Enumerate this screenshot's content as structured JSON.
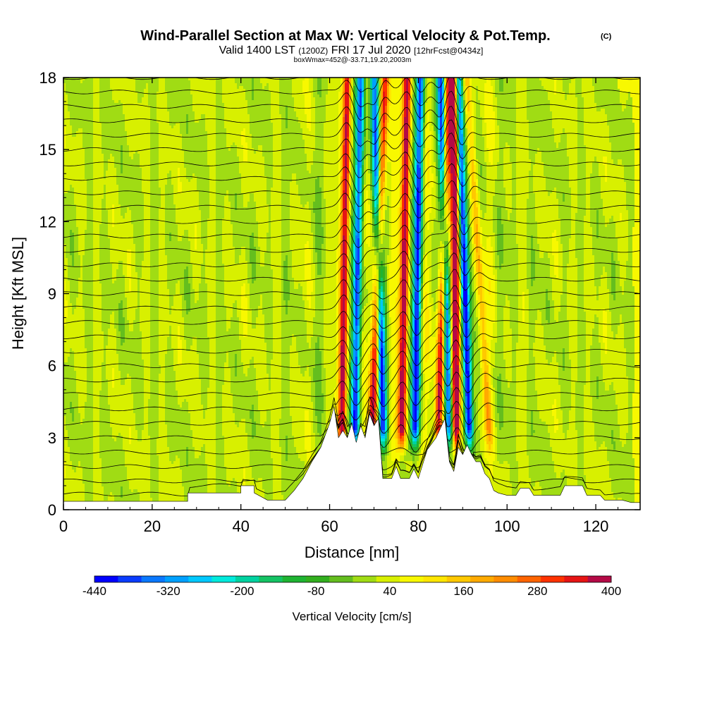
{
  "header": {
    "title": "Wind-Parallel Section at Max W: Vertical Velocity & Pot.Temp.",
    "title_mark": "(C)",
    "line2_a": "Valid 1400 LST",
    "line2_b": "(1200Z)",
    "line2_c": "FRI 17 Jul 2020",
    "line2_d": "[12hrFcst@0434z]",
    "line3": "boxWmax=452@-33.71,19.20,2003m"
  },
  "chart_data": {
    "type": "heatmap",
    "xlabel": "Distance [nm]",
    "ylabel": "Height [Kft MSL]",
    "xlim": [
      0,
      130
    ],
    "ylim": [
      0,
      18
    ],
    "xticks": [
      0,
      20,
      40,
      60,
      80,
      100,
      120
    ],
    "yticks": [
      0,
      3,
      6,
      9,
      12,
      15,
      18
    ],
    "colorbar": {
      "label": "Vertical Velocity [cm/s]",
      "min": -440,
      "max": 400,
      "step": 40,
      "tick_labels": [
        "-440",
        "-320",
        "-200",
        "-80",
        "40",
        "160",
        "280",
        "400"
      ],
      "tick_values": [
        -440,
        -320,
        -200,
        -80,
        40,
        160,
        280,
        400
      ],
      "colors": [
        "#0000ff",
        "#0a3cff",
        "#0a78ff",
        "#00a0ff",
        "#00c8ff",
        "#00eadc",
        "#00d2a0",
        "#14c364",
        "#1eb432",
        "#32af1e",
        "#64be1e",
        "#a0dc14",
        "#d8f000",
        "#f8f800",
        "#ffe600",
        "#ffc800",
        "#ffaa00",
        "#ff8c00",
        "#ff6400",
        "#ff3200",
        "#e61414",
        "#b40a46"
      ]
    },
    "terrain_kft": [
      [
        0,
        0.35
      ],
      [
        28,
        0.35
      ],
      [
        28,
        0.7
      ],
      [
        40,
        0.7
      ],
      [
        40,
        1.0
      ],
      [
        43,
        1.0
      ],
      [
        43,
        0.7
      ],
      [
        46,
        0.4
      ],
      [
        50,
        0.4
      ],
      [
        52,
        0.8
      ],
      [
        54,
        1.3
      ],
      [
        56,
        2.0
      ],
      [
        58,
        2.6
      ],
      [
        60,
        3.6
      ],
      [
        61,
        4.3
      ],
      [
        62,
        3.0
      ],
      [
        63,
        3.3
      ],
      [
        64,
        3.0
      ],
      [
        65,
        3.6
      ],
      [
        66,
        2.8
      ],
      [
        67,
        3.5
      ],
      [
        68,
        3.0
      ],
      [
        69,
        4.0
      ],
      [
        70,
        3.5
      ],
      [
        71,
        3.8
      ],
      [
        72,
        1.3
      ],
      [
        74,
        1.3
      ],
      [
        75,
        1.8
      ],
      [
        76,
        1.3
      ],
      [
        78,
        1.3
      ],
      [
        79,
        1.7
      ],
      [
        80,
        1.3
      ],
      [
        82,
        2.5
      ],
      [
        84,
        3.0
      ],
      [
        86,
        3.8
      ],
      [
        87,
        2.0
      ],
      [
        88,
        1.6
      ],
      [
        89,
        2.6
      ],
      [
        90,
        2.3
      ],
      [
        91,
        2.7
      ],
      [
        92,
        2.3
      ],
      [
        93,
        2.0
      ],
      [
        94,
        2.0
      ],
      [
        95,
        1.5
      ],
      [
        96,
        1.3
      ],
      [
        97,
        0.8
      ],
      [
        98,
        0.7
      ],
      [
        100,
        0.6
      ],
      [
        102,
        0.6
      ],
      [
        103,
        0.9
      ],
      [
        105,
        0.9
      ],
      [
        106,
        0.6
      ],
      [
        112,
        0.6
      ],
      [
        113,
        1.0
      ],
      [
        117,
        1.0
      ],
      [
        118,
        0.6
      ],
      [
        121,
        0.6
      ],
      [
        122,
        0.4
      ],
      [
        126,
        0.4
      ],
      [
        128,
        0.3
      ],
      [
        130,
        0.3
      ]
    ],
    "waves": [
      {
        "x_bottom": 62.5,
        "x_top": 64.0,
        "w_amp": 380
      },
      {
        "x_bottom": 65.5,
        "x_top": 67.0,
        "w_amp": -400
      },
      {
        "x_bottom": 69.0,
        "x_top": 72.5,
        "w_amp": 360
      },
      {
        "x_bottom": 72.5,
        "x_top": 70.0,
        "w_amp": -380
      },
      {
        "x_bottom": 76.0,
        "x_top": 77.5,
        "w_amp": 400
      },
      {
        "x_bottom": 79.0,
        "x_top": 80.5,
        "w_amp": -400
      },
      {
        "x_bottom": 84.0,
        "x_top": 87.0,
        "w_amp": 380
      },
      {
        "x_bottom": 87.5,
        "x_top": 85.0,
        "w_amp": -380
      },
      {
        "x_bottom": 88.5,
        "x_top": 88.0,
        "w_amp": 420
      },
      {
        "x_bottom": 92.0,
        "x_top": 89.0,
        "w_amp": -440
      },
      {
        "x_bottom": 97.0,
        "x_top": 91.0,
        "w_amp": 160
      }
    ],
    "theta_contour_count": 30
  }
}
